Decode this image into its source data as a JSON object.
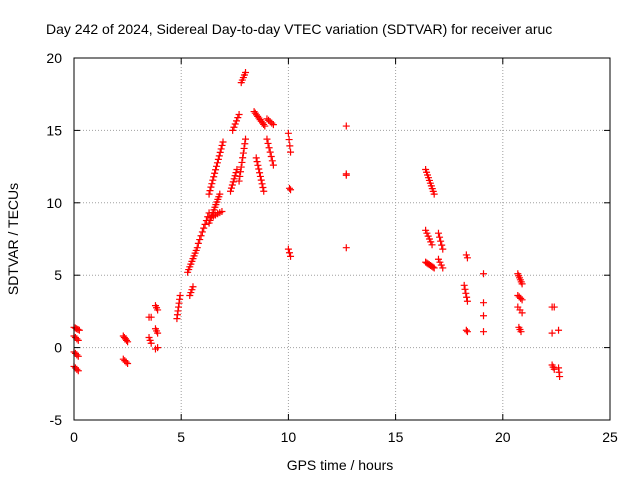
{
  "chart_data": {
    "type": "scatter",
    "title": "Day 242 of 2024, Sidereal Day-to-day VTEC variation (SDTVAR) for receiver aruc",
    "xlabel": "GPS time / hours",
    "ylabel": "SDTVAR / TECUs",
    "xlim": [
      0,
      25
    ],
    "ylim": [
      -5,
      20
    ],
    "xticks": [
      0,
      5,
      10,
      15,
      20,
      25
    ],
    "yticks": [
      -5,
      0,
      5,
      10,
      15,
      20
    ],
    "grid": true,
    "marker": "+",
    "color": "#ff0000",
    "series": [
      {
        "name": "SDTVAR",
        "segments": [
          {
            "x0": 0.0,
            "x1": 0.25,
            "y0": 1.4,
            "y1": 1.2,
            "n": 5
          },
          {
            "x0": 0.0,
            "x1": 0.2,
            "y0": 0.8,
            "y1": 0.5,
            "n": 4
          },
          {
            "x0": 0.0,
            "x1": 0.2,
            "y0": -0.3,
            "y1": -0.6,
            "n": 4
          },
          {
            "x0": 0.0,
            "x1": 0.2,
            "y0": -1.3,
            "y1": -1.6,
            "n": 4
          },
          {
            "x0": 2.3,
            "x1": 2.5,
            "y0": 0.8,
            "y1": 0.4,
            "n": 5
          },
          {
            "x0": 2.3,
            "x1": 2.5,
            "y0": -0.8,
            "y1": -1.1,
            "n": 4
          },
          {
            "x0": 3.5,
            "x1": 3.6,
            "y0": 2.1,
            "y1": 2.1,
            "n": 2
          },
          {
            "x0": 3.5,
            "x1": 3.6,
            "y0": 0.7,
            "y1": 0.3,
            "n": 3
          },
          {
            "x0": 3.8,
            "x1": 3.9,
            "y0": 2.9,
            "y1": 2.6,
            "n": 3
          },
          {
            "x0": 3.8,
            "x1": 3.9,
            "y0": 1.3,
            "y1": 1.0,
            "n": 3
          },
          {
            "x0": 3.8,
            "x1": 3.9,
            "y0": -0.1,
            "y1": 0.0,
            "n": 2
          },
          {
            "x0": 4.8,
            "x1": 4.95,
            "y0": 2.0,
            "y1": 3.6,
            "n": 7
          },
          {
            "x0": 5.4,
            "x1": 5.55,
            "y0": 3.6,
            "y1": 4.2,
            "n": 4
          },
          {
            "x0": 5.3,
            "x1": 5.75,
            "y0": 5.2,
            "y1": 6.9,
            "n": 10
          },
          {
            "x0": 5.8,
            "x1": 6.3,
            "y0": 7.2,
            "y1": 9.3,
            "n": 9
          },
          {
            "x0": 6.3,
            "x1": 6.8,
            "y0": 8.6,
            "y1": 10.6,
            "n": 12
          },
          {
            "x0": 6.4,
            "x1": 6.9,
            "y0": 9.0,
            "y1": 9.4,
            "n": 6
          },
          {
            "x0": 6.3,
            "x1": 6.95,
            "y0": 10.6,
            "y1": 14.2,
            "n": 16
          },
          {
            "x0": 7.3,
            "x1": 7.6,
            "y0": 10.8,
            "y1": 12.3,
            "n": 8
          },
          {
            "x0": 7.4,
            "x1": 7.7,
            "y0": 15.0,
            "y1": 16.1,
            "n": 6
          },
          {
            "x0": 7.8,
            "x1": 8.0,
            "y0": 18.3,
            "y1": 19.0,
            "n": 5
          },
          {
            "x0": 7.7,
            "x1": 8.0,
            "y0": 11.5,
            "y1": 14.4,
            "n": 10
          },
          {
            "x0": 8.4,
            "x1": 8.9,
            "y0": 16.3,
            "y1": 15.3,
            "n": 10
          },
          {
            "x0": 8.5,
            "x1": 8.85,
            "y0": 13.1,
            "y1": 10.8,
            "n": 10
          },
          {
            "x0": 9.0,
            "x1": 9.3,
            "y0": 15.8,
            "y1": 15.4,
            "n": 5
          },
          {
            "x0": 9.0,
            "x1": 9.3,
            "y0": 14.4,
            "y1": 12.6,
            "n": 7
          },
          {
            "x0": 10.0,
            "x1": 10.1,
            "y0": 14.8,
            "y1": 13.5,
            "n": 4
          },
          {
            "x0": 10.05,
            "x1": 10.1,
            "y0": 11.0,
            "y1": 10.9,
            "n": 2
          },
          {
            "x0": 10.0,
            "x1": 10.1,
            "y0": 6.8,
            "y1": 6.3,
            "n": 3
          },
          {
            "x0": 12.7,
            "x1": 12.7,
            "y0": 15.3,
            "y1": 15.3,
            "n": 1
          },
          {
            "x0": 12.7,
            "x1": 12.7,
            "y0": 12.0,
            "y1": 11.9,
            "n": 2
          },
          {
            "x0": 12.7,
            "x1": 12.7,
            "y0": 6.9,
            "y1": 6.9,
            "n": 1
          },
          {
            "x0": 16.4,
            "x1": 16.8,
            "y0": 12.3,
            "y1": 10.6,
            "n": 10
          },
          {
            "x0": 16.4,
            "x1": 16.7,
            "y0": 8.1,
            "y1": 7.1,
            "n": 6
          },
          {
            "x0": 16.4,
            "x1": 16.8,
            "y0": 5.9,
            "y1": 5.5,
            "n": 8
          },
          {
            "x0": 17.0,
            "x1": 17.2,
            "y0": 7.9,
            "y1": 6.8,
            "n": 5
          },
          {
            "x0": 17.0,
            "x1": 17.2,
            "y0": 6.1,
            "y1": 5.5,
            "n": 4
          },
          {
            "x0": 18.3,
            "x1": 18.35,
            "y0": 6.4,
            "y1": 6.2,
            "n": 2
          },
          {
            "x0": 18.2,
            "x1": 18.35,
            "y0": 4.3,
            "y1": 3.2,
            "n": 5
          },
          {
            "x0": 18.3,
            "x1": 18.35,
            "y0": 1.2,
            "y1": 1.1,
            "n": 2
          },
          {
            "x0": 19.1,
            "x1": 19.1,
            "y0": 5.1,
            "y1": 5.1,
            "n": 1
          },
          {
            "x0": 19.1,
            "x1": 19.1,
            "y0": 3.1,
            "y1": 3.1,
            "n": 1
          },
          {
            "x0": 19.1,
            "x1": 19.1,
            "y0": 2.2,
            "y1": 2.2,
            "n": 1
          },
          {
            "x0": 19.1,
            "x1": 19.1,
            "y0": 1.1,
            "y1": 1.1,
            "n": 1
          },
          {
            "x0": 20.7,
            "x1": 20.9,
            "y0": 5.1,
            "y1": 4.4,
            "n": 6
          },
          {
            "x0": 20.7,
            "x1": 20.9,
            "y0": 3.6,
            "y1": 3.3,
            "n": 4
          },
          {
            "x0": 20.7,
            "x1": 20.9,
            "y0": 2.8,
            "y1": 2.4,
            "n": 3
          },
          {
            "x0": 20.75,
            "x1": 20.85,
            "y0": 1.4,
            "y1": 1.1,
            "n": 3
          },
          {
            "x0": 22.3,
            "x1": 22.4,
            "y0": 2.8,
            "y1": 2.8,
            "n": 2
          },
          {
            "x0": 22.3,
            "x1": 22.6,
            "y0": 1.0,
            "y1": 1.2,
            "n": 2
          },
          {
            "x0": 22.3,
            "x1": 22.4,
            "y0": -1.2,
            "y1": -1.5,
            "n": 3
          },
          {
            "x0": 22.6,
            "x1": 22.65,
            "y0": -1.4,
            "y1": -2.0,
            "n": 3
          }
        ]
      }
    ]
  }
}
